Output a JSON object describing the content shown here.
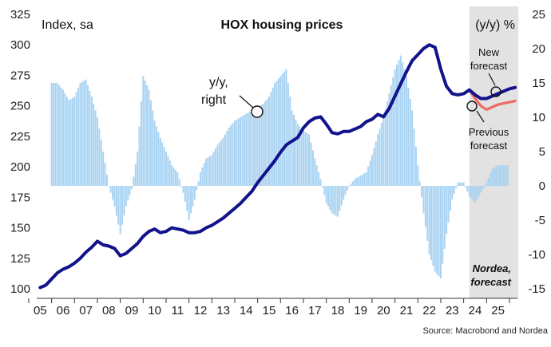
{
  "chart_data": {
    "type": "line",
    "title": "HOX housing prices",
    "left_axis_label": "Index, sa",
    "right_axis_label": "(y/y) %",
    "source": "Source: Macrobond and Nordea",
    "forecast_label": [
      "Nordea,",
      "forecast"
    ],
    "x_tick_labels": [
      "05",
      "06",
      "07",
      "08",
      "09",
      "10",
      "11",
      "12",
      "13",
      "14",
      "15",
      "16",
      "17",
      "18",
      "19",
      "20",
      "21",
      "22",
      "23",
      "24",
      "25"
    ],
    "left_axis": {
      "ylim": [
        100,
        325
      ],
      "ticks": [
        100,
        125,
        150,
        175,
        200,
        225,
        250,
        275,
        300,
        325
      ]
    },
    "right_axis": {
      "ylim": [
        -15,
        25
      ],
      "ticks": [
        -15,
        -10,
        -5,
        0,
        5,
        10,
        15,
        20,
        25
      ]
    },
    "forecast_shade": {
      "start": 2023.75,
      "end": 2025.75
    },
    "colors": {
      "index": "#12128c",
      "yoy": "#a9d3f2",
      "previous": "#ef6a61",
      "shade": "#e2e2e2"
    },
    "annotations": {
      "yoy": [
        "y/y,",
        "right"
      ],
      "new_forecast": [
        "New",
        "forecast"
      ],
      "previous_forecast": [
        "Previous",
        "forecast"
      ]
    },
    "series": [
      {
        "name": "Index, sa",
        "axis": "left",
        "points": [
          [
            2005.0,
            101
          ],
          [
            2005.25,
            103
          ],
          [
            2005.5,
            108
          ],
          [
            2005.75,
            113
          ],
          [
            2006.0,
            116
          ],
          [
            2006.25,
            118
          ],
          [
            2006.5,
            121
          ],
          [
            2006.75,
            125
          ],
          [
            2007.0,
            130
          ],
          [
            2007.25,
            134
          ],
          [
            2007.5,
            139
          ],
          [
            2007.75,
            136
          ],
          [
            2008.0,
            135
          ],
          [
            2008.25,
            133
          ],
          [
            2008.5,
            127
          ],
          [
            2008.75,
            129
          ],
          [
            2009.0,
            133
          ],
          [
            2009.25,
            137
          ],
          [
            2009.5,
            143
          ],
          [
            2009.75,
            147
          ],
          [
            2010.0,
            149
          ],
          [
            2010.25,
            146
          ],
          [
            2010.5,
            147
          ],
          [
            2010.75,
            150
          ],
          [
            2011.0,
            149
          ],
          [
            2011.25,
            148
          ],
          [
            2011.5,
            146
          ],
          [
            2011.75,
            146
          ],
          [
            2012.0,
            147
          ],
          [
            2012.25,
            150
          ],
          [
            2012.5,
            152
          ],
          [
            2012.75,
            155
          ],
          [
            2013.0,
            158
          ],
          [
            2013.25,
            162
          ],
          [
            2013.5,
            166
          ],
          [
            2013.75,
            170
          ],
          [
            2014.0,
            175
          ],
          [
            2014.25,
            180
          ],
          [
            2014.5,
            187
          ],
          [
            2014.75,
            193
          ],
          [
            2015.0,
            199
          ],
          [
            2015.25,
            205
          ],
          [
            2015.5,
            212
          ],
          [
            2015.75,
            218
          ],
          [
            2016.0,
            221
          ],
          [
            2016.25,
            224
          ],
          [
            2016.5,
            232
          ],
          [
            2016.75,
            237
          ],
          [
            2017.0,
            240
          ],
          [
            2017.25,
            241
          ],
          [
            2017.5,
            235
          ],
          [
            2017.75,
            228
          ],
          [
            2018.0,
            227
          ],
          [
            2018.25,
            229
          ],
          [
            2018.5,
            229
          ],
          [
            2018.75,
            231
          ],
          [
            2019.0,
            233
          ],
          [
            2019.25,
            237
          ],
          [
            2019.5,
            239
          ],
          [
            2019.75,
            243
          ],
          [
            2020.0,
            241
          ],
          [
            2020.25,
            248
          ],
          [
            2020.5,
            258
          ],
          [
            2020.75,
            268
          ],
          [
            2021.0,
            278
          ],
          [
            2021.25,
            287
          ],
          [
            2021.5,
            292
          ],
          [
            2021.75,
            297
          ],
          [
            2022.0,
            300
          ],
          [
            2022.25,
            298
          ],
          [
            2022.5,
            280
          ],
          [
            2022.75,
            266
          ],
          [
            2023.0,
            260
          ],
          [
            2023.25,
            259
          ],
          [
            2023.5,
            260
          ],
          [
            2023.75,
            263
          ]
        ]
      },
      {
        "name": "New forecast",
        "axis": "left",
        "points": [
          [
            2023.75,
            263
          ],
          [
            2024.0,
            259
          ],
          [
            2024.25,
            256
          ],
          [
            2024.5,
            256
          ],
          [
            2024.75,
            258
          ],
          [
            2025.0,
            260
          ],
          [
            2025.25,
            262
          ],
          [
            2025.5,
            264
          ],
          [
            2025.75,
            265
          ]
        ]
      },
      {
        "name": "Previous forecast",
        "axis": "left",
        "points": [
          [
            2023.5,
            260
          ],
          [
            2023.75,
            263
          ],
          [
            2024.0,
            256
          ],
          [
            2024.25,
            250
          ],
          [
            2024.5,
            247
          ],
          [
            2024.75,
            249
          ],
          [
            2025.0,
            251
          ],
          [
            2025.25,
            252
          ],
          [
            2025.5,
            253
          ],
          [
            2025.75,
            254
          ]
        ]
      },
      {
        "name": "y/y, right",
        "axis": "right",
        "type": "bar",
        "points": [
          [
            2005.5,
            15.0
          ],
          [
            2005.75,
            15.0
          ],
          [
            2006.0,
            14.0
          ],
          [
            2006.25,
            12.5
          ],
          [
            2006.5,
            13.0
          ],
          [
            2006.75,
            15.0
          ],
          [
            2007.0,
            15.5
          ],
          [
            2007.25,
            13.0
          ],
          [
            2007.5,
            10.0
          ],
          [
            2007.75,
            5.0
          ],
          [
            2008.0,
            0.0
          ],
          [
            2008.25,
            -3.0
          ],
          [
            2008.5,
            -7.0
          ],
          [
            2008.75,
            -3.0
          ],
          [
            2009.0,
            -0.5
          ],
          [
            2009.25,
            5.0
          ],
          [
            2009.5,
            16.0
          ],
          [
            2009.75,
            14.0
          ],
          [
            2010.0,
            9.5
          ],
          [
            2010.25,
            7.0
          ],
          [
            2010.5,
            5.0
          ],
          [
            2010.75,
            3.0
          ],
          [
            2011.0,
            2.0
          ],
          [
            2011.25,
            -1.0
          ],
          [
            2011.5,
            -5.0
          ],
          [
            2011.75,
            -2.0
          ],
          [
            2012.0,
            2.0
          ],
          [
            2012.25,
            4.0
          ],
          [
            2012.5,
            4.5
          ],
          [
            2012.75,
            6.0
          ],
          [
            2013.0,
            7.0
          ],
          [
            2013.25,
            8.5
          ],
          [
            2013.5,
            9.5
          ],
          [
            2013.75,
            10.0
          ],
          [
            2014.0,
            10.5
          ],
          [
            2014.25,
            11.0
          ],
          [
            2014.5,
            11.5
          ],
          [
            2014.75,
            12.0
          ],
          [
            2015.0,
            13.0
          ],
          [
            2015.25,
            15.0
          ],
          [
            2015.5,
            16.0
          ],
          [
            2015.75,
            17.0
          ],
          [
            2016.0,
            11.0
          ],
          [
            2016.25,
            9.0
          ],
          [
            2016.5,
            8.0
          ],
          [
            2016.75,
            7.5
          ],
          [
            2017.0,
            4.0
          ],
          [
            2017.25,
            1.0
          ],
          [
            2017.5,
            -2.5
          ],
          [
            2017.75,
            -4.0
          ],
          [
            2018.0,
            -4.5
          ],
          [
            2018.25,
            -2.0
          ],
          [
            2018.5,
            0.0
          ],
          [
            2018.75,
            1.0
          ],
          [
            2019.0,
            1.5
          ],
          [
            2019.25,
            2.0
          ],
          [
            2019.5,
            4.5
          ],
          [
            2019.75,
            7.5
          ],
          [
            2020.0,
            10.0
          ],
          [
            2020.25,
            13.5
          ],
          [
            2020.5,
            17.0
          ],
          [
            2020.75,
            19.0
          ],
          [
            2021.0,
            16.0
          ],
          [
            2021.25,
            11.0
          ],
          [
            2021.5,
            3.0
          ],
          [
            2021.75,
            -4.0
          ],
          [
            2022.0,
            -10.0
          ],
          [
            2022.25,
            -12.5
          ],
          [
            2022.5,
            -13.5
          ],
          [
            2022.75,
            -7.0
          ],
          [
            2023.0,
            -2.0
          ],
          [
            2023.25,
            0.5
          ],
          [
            2023.5,
            0.5
          ],
          [
            2023.75,
            -1.5
          ],
          [
            2024.0,
            -2.5
          ],
          [
            2024.25,
            -1.0
          ],
          [
            2024.5,
            0.5
          ],
          [
            2024.75,
            2.5
          ],
          [
            2025.0,
            3.0
          ],
          [
            2025.25,
            3.0
          ],
          [
            2025.5,
            3.0
          ]
        ]
      }
    ]
  }
}
